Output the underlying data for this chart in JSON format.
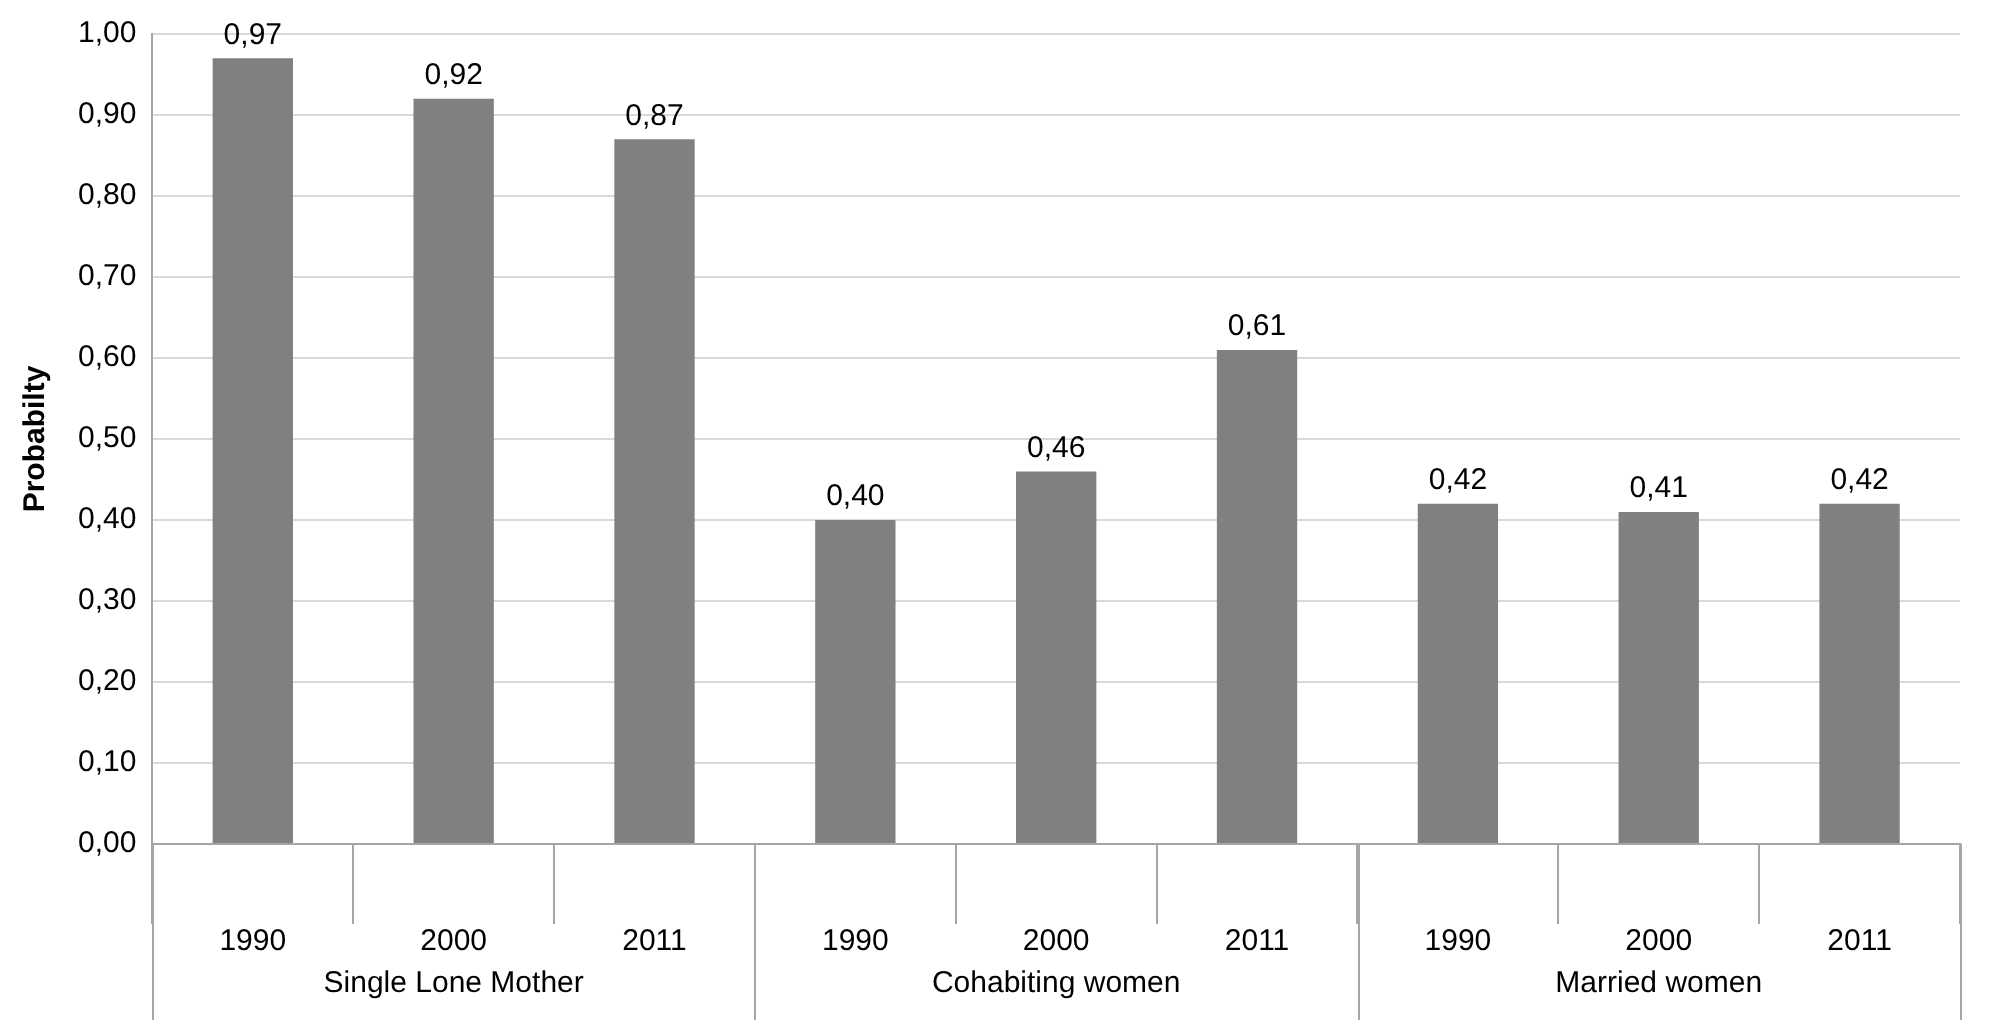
{
  "chart_data": {
    "type": "bar",
    "ylabel": "Probabilty",
    "categories": [
      "1990",
      "2000",
      "2011",
      "1990",
      "2000",
      "2011",
      "1990",
      "2000",
      "2011"
    ],
    "values": [
      0.97,
      0.92,
      0.87,
      0.4,
      0.46,
      0.61,
      0.42,
      0.41,
      0.42
    ],
    "value_labels": [
      "0,97",
      "0,92",
      "0,87",
      "0,40",
      "0,46",
      "0,61",
      "0,42",
      "0,41",
      "0,42"
    ],
    "color": "#808080",
    "annotations": [
      "Single Lone Mother",
      "Cohabiting women",
      "Married women"
    ],
    "ylim": [
      0,
      1
    ],
    "yticks": [
      {
        "value": 0,
        "label": "0,00"
      },
      {
        "value": 0.1,
        "label": "0,10"
      },
      {
        "value": 0.2,
        "label": "0,20"
      },
      {
        "value": 0.3,
        "label": "0,30"
      },
      {
        "value": 0.4,
        "label": "0,40"
      },
      {
        "value": 0.5,
        "label": "0,50"
      },
      {
        "value": 0.6,
        "label": "0,60"
      },
      {
        "value": 0.7,
        "label": "0,70"
      },
      {
        "value": 0.8,
        "label": "0,80"
      },
      {
        "value": 0.9,
        "label": "0,90"
      },
      {
        "value": 1,
        "label": "1,00"
      }
    ],
    "grid": "y",
    "legend": false
  }
}
